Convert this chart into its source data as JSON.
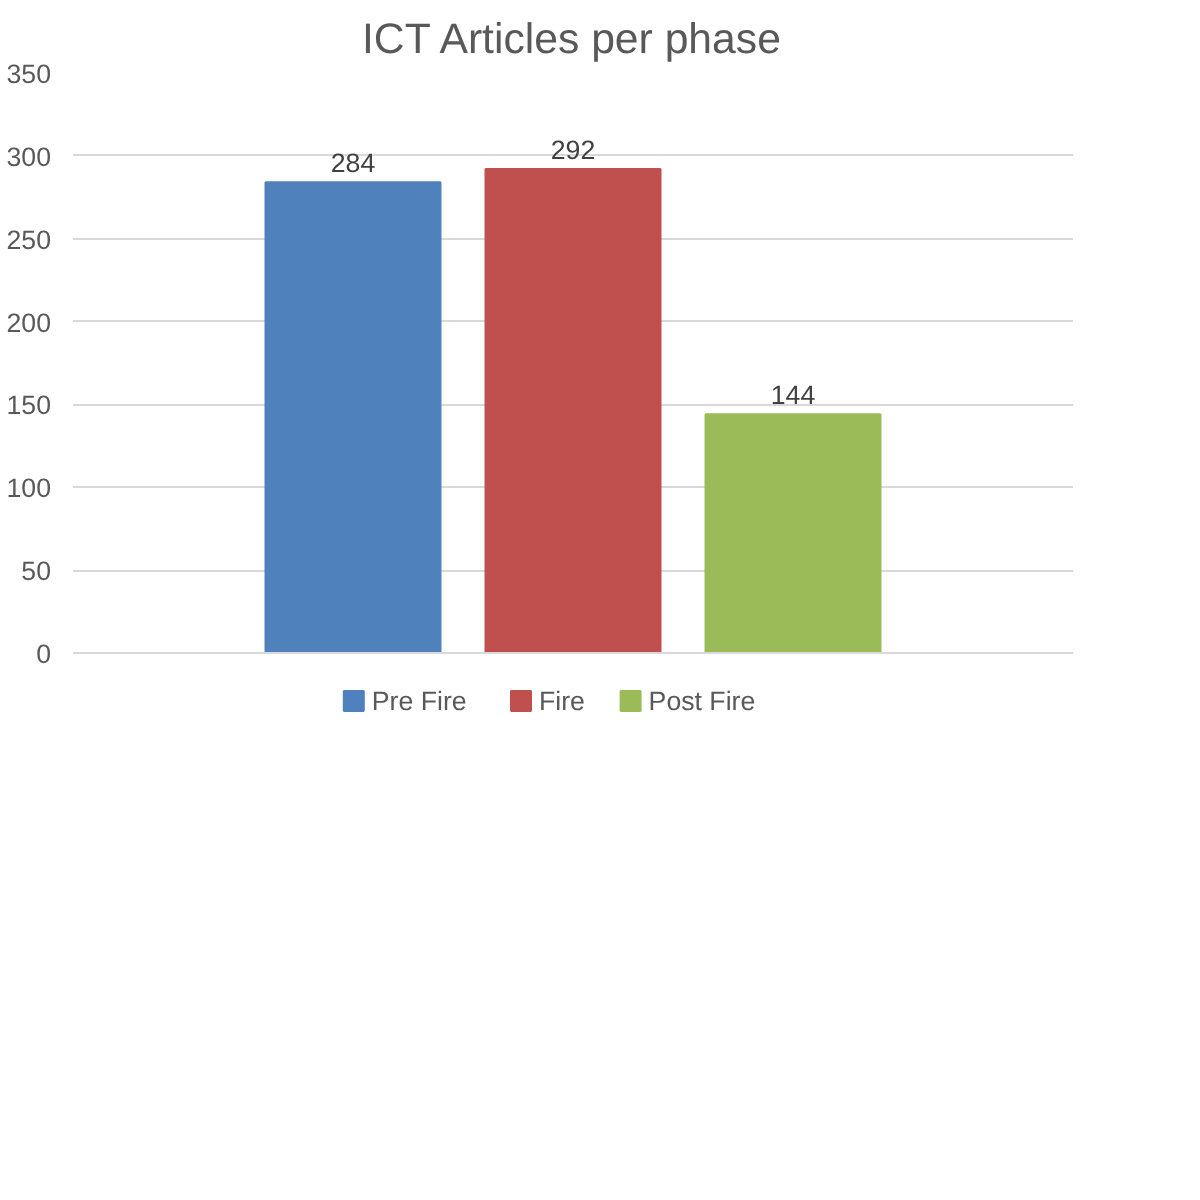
{
  "chart_data": {
    "type": "bar",
    "title": "ICT Articles per phase",
    "categories": [
      null
    ],
    "series": [
      {
        "name": "Pre Fire",
        "color": "#4f81bd",
        "values": [
          284
        ]
      },
      {
        "name": "Fire",
        "color": "#c0504d",
        "values": [
          292
        ]
      },
      {
        "name": "Post Fire",
        "color": "#9bbb59",
        "values": [
          144
        ]
      }
    ],
    "ylim": [
      0,
      350
    ],
    "yticks": [
      0,
      50,
      100,
      150,
      200,
      250,
      300,
      350
    ],
    "grid": "y",
    "legend": "bottom",
    "data_labels": true
  }
}
